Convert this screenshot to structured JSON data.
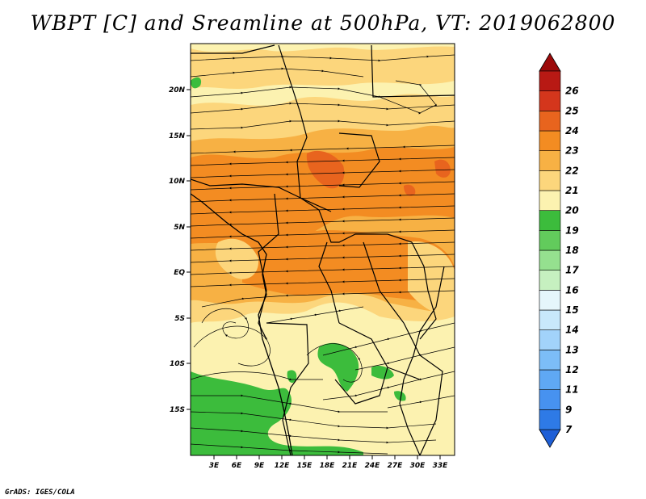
{
  "title": "WBPT [C] and Sreamline at 500hPa, VT: 2019062800",
  "credit": "GrADS: IGES/COLA",
  "colors": {
    "c18": "#3cbc3c",
    "c19": "#fcf2b0",
    "c20": "#fcd67c",
    "c21": "#f7b144",
    "c22": "#f38c22",
    "c23": "#e8641e",
    "c24": "#d4361c",
    "c25": "#b81914",
    "c26": "#9c0a0a",
    "frame": "#000000",
    "background": "#ffffff"
  },
  "chart_data": {
    "type": "map",
    "variable": "Wet-bulb potential temperature and streamlines at 500 hPa",
    "valid_time": "2019062800",
    "lon_ticks": [
      "3E",
      "6E",
      "9E",
      "12E",
      "15E",
      "18E",
      "21E",
      "24E",
      "27E",
      "30E",
      "33E"
    ],
    "lat_ticks": [
      "20N",
      "15N",
      "10N",
      "5N",
      "EQ",
      "5S",
      "10S",
      "15S"
    ],
    "colorbar": {
      "levels": [
        "7",
        "9",
        "11",
        "12",
        "13",
        "14",
        "15",
        "16",
        "17",
        "18",
        "19",
        "20",
        "21",
        "22",
        "23",
        "24",
        "25",
        "26"
      ],
      "colors": [
        "#1f5fd6",
        "#2e7ae6",
        "#4792f0",
        "#5fa8f4",
        "#7cbdf7",
        "#a2d3fa",
        "#c8e8fb",
        "#e5f6fb",
        "#c6f0c0",
        "#95e08f",
        "#62cb5c",
        "#3cbc3c",
        "#fcf2b0",
        "#fcd67c",
        "#f7b144",
        "#f38c22",
        "#e8641e",
        "#d4361c",
        "#b81914",
        "#9c0a0a"
      ]
    }
  }
}
